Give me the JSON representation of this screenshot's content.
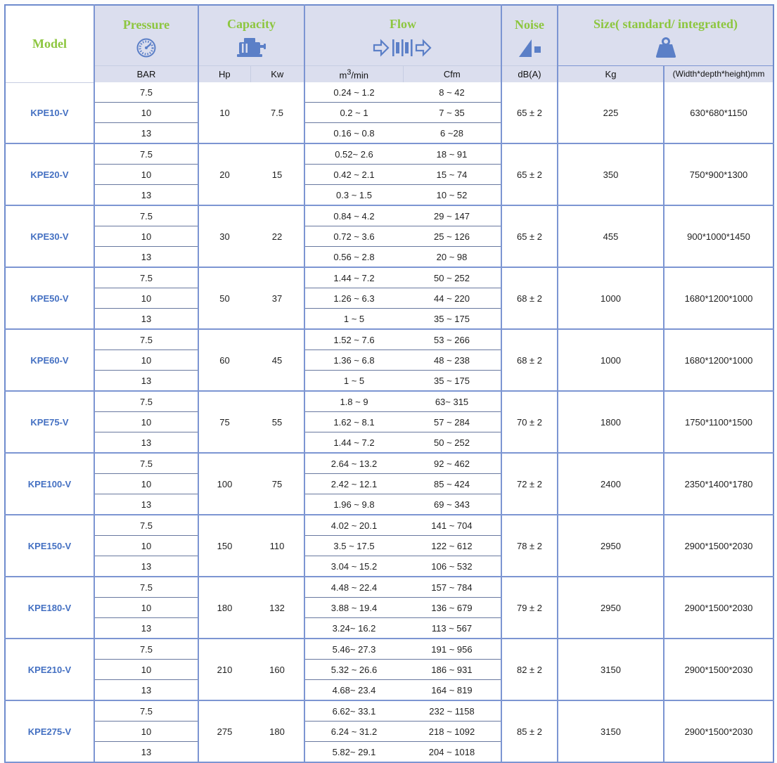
{
  "colors": {
    "header_background": "#dbdeee",
    "model_cell_background": "#ccd2ea",
    "title_green": "#8dc63f",
    "model_blue": "#4470c2",
    "icon_blue": "#5b7fc7",
    "border_blue": "#7c95d2"
  },
  "table": {
    "columns": {
      "model_label": "Model",
      "pressure": {
        "title": "Pressure",
        "unit": "BAR",
        "icon": "gauge-icon"
      },
      "capacity": {
        "title": "Capacity",
        "unit_hp": "Hp",
        "unit_kw": "Kw",
        "icon": "motor-icon"
      },
      "flow": {
        "title": "Flow",
        "unit_m3_base": "m",
        "unit_m3_sup": "3",
        "unit_m3_rest": "/min",
        "unit_cfm": "Cfm",
        "icon": "flow-icon"
      },
      "noise": {
        "title": "Noise",
        "unit": "dB(A)",
        "icon": "speaker-icon"
      },
      "size": {
        "title": "Size( standard/ integrated)",
        "unit_kg": "Kg",
        "unit_mm": "(Width*depth*height)mm",
        "icon": "weight-icon"
      }
    },
    "models": [
      {
        "model": "KPE10-V",
        "pressures": [
          "7.5",
          "10",
          "13"
        ],
        "hp": "10",
        "kw": "7.5",
        "flow_m3": [
          "0.24 ~ 1.2",
          "0.2 ~ 1",
          "0.16 ~ 0.8"
        ],
        "flow_cfm": [
          "8 ~ 42",
          "7 ~ 35",
          "6 ~28"
        ],
        "noise": "65 ± 2",
        "weight_kg": "225",
        "size_mm": "630*680*1150"
      },
      {
        "model": "KPE20-V",
        "pressures": [
          "7.5",
          "10",
          "13"
        ],
        "hp": "20",
        "kw": "15",
        "flow_m3": [
          "0.52~ 2.6",
          "0.42 ~ 2.1",
          "0.3 ~ 1.5"
        ],
        "flow_cfm": [
          "18 ~ 91",
          "15 ~ 74",
          "10 ~ 52"
        ],
        "noise": "65 ± 2",
        "weight_kg": "350",
        "size_mm": "750*900*1300"
      },
      {
        "model": "KPE30-V",
        "pressures": [
          "7.5",
          "10",
          "13"
        ],
        "hp": "30",
        "kw": "22",
        "flow_m3": [
          "0.84 ~ 4.2",
          "0.72 ~ 3.6",
          "0.56 ~ 2.8"
        ],
        "flow_cfm": [
          "29 ~ 147",
          "25 ~ 126",
          "20 ~ 98"
        ],
        "noise": "65 ± 2",
        "weight_kg": "455",
        "size_mm": "900*1000*1450"
      },
      {
        "model": "KPE50-V",
        "pressures": [
          "7.5",
          "10",
          "13"
        ],
        "hp": "50",
        "kw": "37",
        "flow_m3": [
          "1.44 ~ 7.2",
          "1.26 ~ 6.3",
          "1 ~ 5"
        ],
        "flow_cfm": [
          "50 ~ 252",
          "44 ~ 220",
          "35 ~ 175"
        ],
        "noise": "68 ± 2",
        "weight_kg": "1000",
        "size_mm": "1680*1200*1000"
      },
      {
        "model": "KPE60-V",
        "pressures": [
          "7.5",
          "10",
          "13"
        ],
        "hp": "60",
        "kw": "45",
        "flow_m3": [
          "1.52 ~ 7.6",
          "1.36 ~ 6.8",
          "1 ~ 5"
        ],
        "flow_cfm": [
          "53 ~ 266",
          "48 ~ 238",
          "35 ~ 175"
        ],
        "noise": "68 ± 2",
        "weight_kg": "1000",
        "size_mm": "1680*1200*1000"
      },
      {
        "model": "KPE75-V",
        "pressures": [
          "7.5",
          "10",
          "13"
        ],
        "hp": "75",
        "kw": "55",
        "flow_m3": [
          "1.8 ~ 9",
          "1.62 ~ 8.1",
          "1.44 ~ 7.2"
        ],
        "flow_cfm": [
          "63~ 315",
          "57 ~ 284",
          "50 ~ 252"
        ],
        "noise": "70 ± 2",
        "weight_kg": "1800",
        "size_mm": "1750*1100*1500"
      },
      {
        "model": "KPE100-V",
        "pressures": [
          "7.5",
          "10",
          "13"
        ],
        "hp": "100",
        "kw": "75",
        "flow_m3": [
          "2.64 ~ 13.2",
          "2.42 ~ 12.1",
          "1.96 ~ 9.8"
        ],
        "flow_cfm": [
          "92 ~ 462",
          "85 ~ 424",
          "69 ~ 343"
        ],
        "noise": "72 ± 2",
        "weight_kg": "2400",
        "size_mm": "2350*1400*1780"
      },
      {
        "model": "KPE150-V",
        "pressures": [
          "7.5",
          "10",
          "13"
        ],
        "hp": "150",
        "kw": "110",
        "flow_m3": [
          "4.02 ~ 20.1",
          "3.5 ~ 17.5",
          "3.04 ~ 15.2"
        ],
        "flow_cfm": [
          "141 ~ 704",
          "122 ~ 612",
          "106 ~ 532"
        ],
        "noise": "78 ± 2",
        "weight_kg": "2950",
        "size_mm": "2900*1500*2030"
      },
      {
        "model": "KPE180-V",
        "pressures": [
          "7.5",
          "10",
          "13"
        ],
        "hp": "180",
        "kw": "132",
        "flow_m3": [
          "4.48 ~ 22.4",
          "3.88 ~ 19.4",
          "3.24~ 16.2"
        ],
        "flow_cfm": [
          "157 ~ 784",
          "136 ~ 679",
          "113 ~ 567"
        ],
        "noise": "79 ± 2",
        "weight_kg": "2950",
        "size_mm": "2900*1500*2030"
      },
      {
        "model": "KPE210-V",
        "pressures": [
          "7.5",
          "10",
          "13"
        ],
        "hp": "210",
        "kw": "160",
        "flow_m3": [
          "5.46~ 27.3",
          "5.32 ~ 26.6",
          "4.68~ 23.4"
        ],
        "flow_cfm": [
          "191 ~ 956",
          "186 ~ 931",
          "164 ~ 819"
        ],
        "noise": "82 ± 2",
        "weight_kg": "3150",
        "size_mm": "2900*1500*2030"
      },
      {
        "model": "KPE275-V",
        "pressures": [
          "7.5",
          "10",
          "13"
        ],
        "hp": "275",
        "kw": "180",
        "flow_m3": [
          "6.62~ 33.1",
          "6.24 ~ 31.2",
          "5.82~ 29.1"
        ],
        "flow_cfm": [
          "232 ~ 1158",
          "218 ~ 1092",
          "204 ~ 1018"
        ],
        "noise": "85 ± 2",
        "weight_kg": "3150",
        "size_mm": "2900*1500*2030"
      }
    ]
  }
}
